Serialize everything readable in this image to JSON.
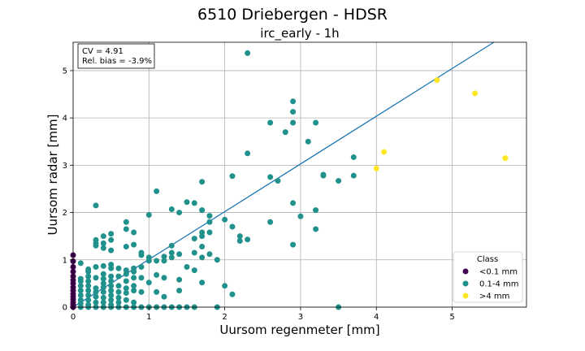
{
  "chart_data": {
    "type": "scatter",
    "suptitle": "6510 Driebergen - HDSR",
    "title": "irc_early - 1h",
    "xlabel": "Uursom regenmeter [mm]",
    "ylabel": "Uursom radar [mm]",
    "xlim": [
      0,
      5.98
    ],
    "ylim": [
      0,
      5.6
    ],
    "xticks": [
      0,
      1,
      2,
      3,
      4,
      5
    ],
    "yticks": [
      0,
      1,
      2,
      3,
      4,
      5
    ],
    "grid": true,
    "stats": {
      "cv": "CV = 4.91",
      "bias": "Rel. bias = -3.9%"
    },
    "fit_line": {
      "x": [
        0,
        5.55
      ],
      "y": [
        0,
        5.6
      ],
      "color": "#1f77b4"
    },
    "legend": {
      "title": "Class",
      "position": "lower right"
    },
    "series": [
      {
        "name": "<0.1 mm",
        "color": "#440154",
        "points": [
          [
            0,
            1.1
          ],
          [
            0,
            0.97
          ],
          [
            0,
            0.85
          ],
          [
            0,
            0.75
          ],
          [
            0,
            0.65
          ],
          [
            0,
            0.57
          ],
          [
            0,
            0.5
          ],
          [
            0,
            0.42
          ],
          [
            0,
            0.35
          ],
          [
            0,
            0.28
          ],
          [
            0,
            0.22
          ],
          [
            0,
            0.16
          ],
          [
            0,
            0.1
          ],
          [
            0,
            0.05
          ],
          [
            0,
            0
          ]
        ]
      },
      {
        "name": "0.1-4 mm",
        "color": "#21918c",
        "points": [
          [
            0.1,
            0.93
          ],
          [
            0.1,
            0.6
          ],
          [
            0.1,
            0.55
          ],
          [
            0.1,
            0.45
          ],
          [
            0.1,
            0.35
          ],
          [
            0.1,
            0.25
          ],
          [
            0.1,
            0.15
          ],
          [
            0.1,
            0.08
          ],
          [
            0.1,
            0
          ],
          [
            0.2,
            0.8
          ],
          [
            0.2,
            0.75
          ],
          [
            0.2,
            0.65
          ],
          [
            0.2,
            0.55
          ],
          [
            0.2,
            0.45
          ],
          [
            0.2,
            0.35
          ],
          [
            0.2,
            0.25
          ],
          [
            0.2,
            0.15
          ],
          [
            0.2,
            0.05
          ],
          [
            0.2,
            0
          ],
          [
            0.3,
            2.15
          ],
          [
            0.3,
            1.42
          ],
          [
            0.3,
            1.35
          ],
          [
            0.3,
            1.3
          ],
          [
            0.3,
            0.85
          ],
          [
            0.3,
            0.62
          ],
          [
            0.3,
            0.4
          ],
          [
            0.3,
            0.32
          ],
          [
            0.3,
            0.22
          ],
          [
            0.3,
            0.1
          ],
          [
            0.3,
            0
          ],
          [
            0.4,
            1.5
          ],
          [
            0.4,
            1.35
          ],
          [
            0.4,
            1.25
          ],
          [
            0.4,
            0.87
          ],
          [
            0.4,
            0.7
          ],
          [
            0.4,
            0.6
          ],
          [
            0.4,
            0.5
          ],
          [
            0.4,
            0.42
          ],
          [
            0.4,
            0.32
          ],
          [
            0.4,
            0.2
          ],
          [
            0.4,
            0.1
          ],
          [
            0.4,
            0
          ],
          [
            0.5,
            1.55
          ],
          [
            0.5,
            1.42
          ],
          [
            0.5,
            1.2
          ],
          [
            0.5,
            0.9
          ],
          [
            0.5,
            0.82
          ],
          [
            0.5,
            0.65
          ],
          [
            0.5,
            0.55
          ],
          [
            0.5,
            0.45
          ],
          [
            0.5,
            0.35
          ],
          [
            0.5,
            0.25
          ],
          [
            0.5,
            0.15
          ],
          [
            0.5,
            0.05
          ],
          [
            0.5,
            0
          ],
          [
            0.6,
            0.82
          ],
          [
            0.6,
            0.65
          ],
          [
            0.6,
            0.45
          ],
          [
            0.6,
            0.32
          ],
          [
            0.6,
            0.2
          ],
          [
            0.6,
            0.1
          ],
          [
            0.6,
            0
          ],
          [
            0.7,
            1.8
          ],
          [
            0.7,
            1.65
          ],
          [
            0.7,
            1.28
          ],
          [
            0.7,
            0.78
          ],
          [
            0.7,
            0.7
          ],
          [
            0.7,
            0.55
          ],
          [
            0.7,
            0.4
          ],
          [
            0.7,
            0.3
          ],
          [
            0.7,
            0.15
          ],
          [
            0.7,
            0
          ],
          [
            0.8,
            1.58
          ],
          [
            0.8,
            1.32
          ],
          [
            0.8,
            0.82
          ],
          [
            0.8,
            0.75
          ],
          [
            0.8,
            0.62
          ],
          [
            0.8,
            0.45
          ],
          [
            0.8,
            0.35
          ],
          [
            0.8,
            0.1
          ],
          [
            0.8,
            0
          ],
          [
            0.9,
            1.15
          ],
          [
            0.9,
            1.1
          ],
          [
            0.9,
            0.85
          ],
          [
            0.9,
            0.62
          ],
          [
            0.9,
            0.32
          ],
          [
            0.9,
            0
          ],
          [
            1.0,
            1.95
          ],
          [
            1.0,
            1.05
          ],
          [
            1.0,
            0.98
          ],
          [
            1.0,
            0.52
          ],
          [
            1.0,
            0
          ],
          [
            1.1,
            2.45
          ],
          [
            1.1,
            0.98
          ],
          [
            1.1,
            0.68
          ],
          [
            1.1,
            0.32
          ],
          [
            1.1,
            0
          ],
          [
            1.2,
            1.07
          ],
          [
            1.2,
            0.98
          ],
          [
            1.2,
            0.62
          ],
          [
            1.2,
            0.22
          ],
          [
            1.2,
            0
          ],
          [
            1.3,
            2.07
          ],
          [
            1.3,
            1.3
          ],
          [
            1.3,
            1.15
          ],
          [
            1.3,
            1.05
          ],
          [
            1.3,
            0
          ],
          [
            1.4,
            2.0
          ],
          [
            1.4,
            1.12
          ],
          [
            1.4,
            0.58
          ],
          [
            1.4,
            0.35
          ],
          [
            1.4,
            0
          ],
          [
            1.5,
            2.22
          ],
          [
            1.5,
            0.85
          ],
          [
            1.5,
            0
          ],
          [
            1.6,
            2.2
          ],
          [
            1.6,
            1.45
          ],
          [
            1.6,
            1.15
          ],
          [
            1.6,
            0.78
          ],
          [
            1.6,
            0
          ],
          [
            1.7,
            2.65
          ],
          [
            1.7,
            2.05
          ],
          [
            1.7,
            1.58
          ],
          [
            1.7,
            1.5
          ],
          [
            1.7,
            1.28
          ],
          [
            1.7,
            1.05
          ],
          [
            1.7,
            0.52
          ],
          [
            1.8,
            1.93
          ],
          [
            1.8,
            1.8
          ],
          [
            1.8,
            1.58
          ],
          [
            1.8,
            1.12
          ],
          [
            1.9,
            1.0
          ],
          [
            1.9,
            0
          ],
          [
            2.0,
            1.85
          ],
          [
            2.0,
            0.45
          ],
          [
            2.1,
            2.77
          ],
          [
            2.1,
            1.7
          ],
          [
            2.1,
            0.27
          ],
          [
            2.2,
            1.5
          ],
          [
            2.2,
            1.4
          ],
          [
            2.3,
            5.37
          ],
          [
            2.3,
            3.25
          ],
          [
            2.3,
            1.43
          ],
          [
            2.6,
            3.9
          ],
          [
            2.6,
            2.75
          ],
          [
            2.6,
            1.8
          ],
          [
            2.7,
            2.67
          ],
          [
            2.8,
            3.7
          ],
          [
            2.9,
            4.35
          ],
          [
            2.9,
            4.13
          ],
          [
            2.9,
            3.9
          ],
          [
            2.9,
            2.2
          ],
          [
            2.9,
            1.32
          ],
          [
            3.0,
            1.92
          ],
          [
            3.1,
            3.5
          ],
          [
            3.2,
            3.9
          ],
          [
            3.2,
            2.05
          ],
          [
            3.2,
            1.65
          ],
          [
            3.3,
            2.8
          ],
          [
            3.3,
            2.78
          ],
          [
            3.5,
            2.67
          ],
          [
            3.5,
            0
          ],
          [
            3.7,
            3.17
          ],
          [
            3.7,
            2.78
          ]
        ]
      },
      {
        "name": ">4 mm",
        "color": "#fde725",
        "points": [
          [
            4.0,
            2.93
          ],
          [
            4.1,
            3.28
          ],
          [
            4.8,
            4.8
          ],
          [
            5.3,
            4.52
          ],
          [
            5.7,
            3.15
          ]
        ]
      }
    ]
  }
}
